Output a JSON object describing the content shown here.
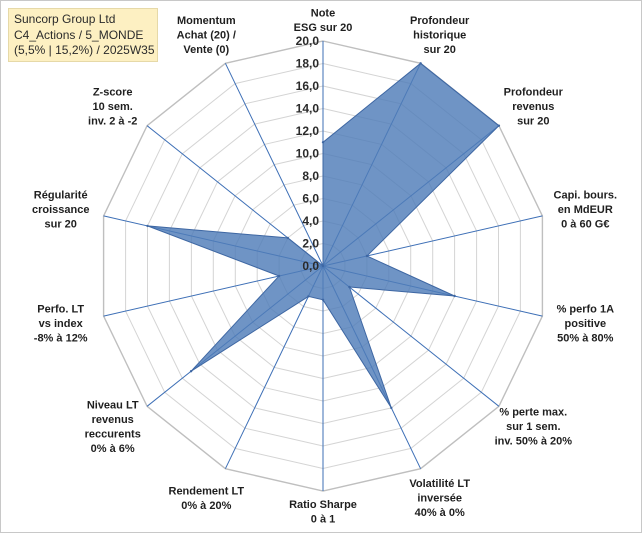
{
  "header": {
    "lines": [
      "Suncorp Group Ltd",
      "C4_Actions / 5_MONDE",
      "(5,5% | 15,2%) / 2025W35"
    ]
  },
  "chart_data": {
    "type": "radar",
    "r_range": [
      0,
      20
    ],
    "r_ticks": [
      "0,0",
      "2,0",
      "4,0",
      "6,0",
      "8,0",
      "10,0",
      "12,0",
      "14,0",
      "16,0",
      "18,0",
      "20,0"
    ],
    "grid": true,
    "series_color": "#4f7cb8",
    "axes": [
      {
        "label": [
          "Note",
          "ESG sur 20"
        ],
        "value": 11
      },
      {
        "label": [
          "Profondeur",
          "historique",
          "sur 20"
        ],
        "value": 20
      },
      {
        "label": [
          "Profondeur",
          "revenus",
          "sur 20"
        ],
        "value": 20
      },
      {
        "label": [
          "Capi. bours.",
          "en MdEUR",
          "0 à 60 G€"
        ],
        "value": 4
      },
      {
        "label": [
          "% perfo 1A",
          "positive",
          "50% à 80%"
        ],
        "value": 12
      },
      {
        "label": [
          "% perte max.",
          "sur 1 sem.",
          "inv. 50% à 20%"
        ],
        "value": 3
      },
      {
        "label": [
          "Volatilité LT",
          "inversée",
          "40% à 0%"
        ],
        "value": 14
      },
      {
        "label": [
          "Ratio Sharpe",
          "0 à 1"
        ],
        "value": 3
      },
      {
        "label": [
          "Rendement LT",
          "0% à 20%"
        ],
        "value": 3
      },
      {
        "label": [
          "Niveau LT",
          "revenus",
          "reccurents",
          "0% à 6%"
        ],
        "value": 15
      },
      {
        "label": [
          "Perfo. LT",
          "vs index",
          "-8% à 12%"
        ],
        "value": 4
      },
      {
        "label": [
          "Régularité",
          "croissance",
          "sur 20"
        ],
        "value": 16
      },
      {
        "label": [
          "Z-score",
          "10 sem.",
          "inv. 2 à -2"
        ],
        "value": 4
      },
      {
        "label": [
          "Momentum",
          "Achat (20) /",
          "Vente (0)"
        ],
        "value": 0
      }
    ]
  }
}
